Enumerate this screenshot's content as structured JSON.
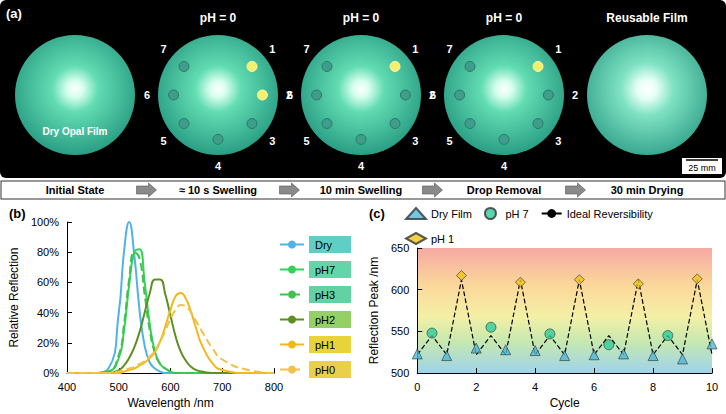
{
  "panel_a": {
    "label": "(a)",
    "photos": [
      {
        "caption": "Dry Opal Film"
      },
      {
        "title": "pH = 0",
        "drops": [
          "1",
          "2",
          "3",
          "4",
          "5",
          "6",
          "7"
        ]
      },
      {
        "title": "pH = 0",
        "drops": [
          "1",
          "2",
          "3",
          "4",
          "5",
          "6",
          "7"
        ]
      },
      {
        "title": "pH = 0",
        "drops": [
          "1",
          "2",
          "3",
          "4",
          "5",
          "6",
          "7"
        ]
      },
      {
        "title": "Reusable Film"
      }
    ],
    "scale_bar": "25 mm",
    "steps": [
      "Initial State",
      "≈ 10 s Swelling",
      "10 min Swelling",
      "Drop Removal",
      "30 min Drying"
    ]
  },
  "chart_data": [
    {
      "type": "line",
      "title": "(b)",
      "x_label": "Wavelength /nm",
      "y_label": "Relative Reflection",
      "x": [
        400,
        450,
        480,
        500,
        510,
        520,
        530,
        540,
        550,
        560,
        570,
        580,
        590,
        600,
        610,
        620,
        630,
        640,
        650,
        660,
        680,
        700,
        750,
        800
      ],
      "series": [
        {
          "name": "Dry",
          "color": "#4fb3e8",
          "line_style": "solid",
          "values": [
            0,
            0,
            3,
            40,
            80,
            100,
            78,
            42,
            18,
            7,
            3,
            1,
            0,
            0,
            0,
            0,
            0,
            0,
            0,
            0,
            0,
            0,
            0,
            0
          ]
        },
        {
          "name": "pH7",
          "color": "#33d35a",
          "line_style": "solid",
          "values": [
            0,
            0,
            1,
            10,
            28,
            58,
            80,
            82,
            60,
            32,
            14,
            6,
            3,
            1,
            0,
            0,
            0,
            0,
            0,
            0,
            0,
            0,
            0,
            0
          ]
        },
        {
          "name": "pH3",
          "color": "#3ec24e",
          "line_style": "dashed",
          "values": [
            0,
            0,
            1,
            12,
            32,
            62,
            80,
            76,
            52,
            28,
            13,
            6,
            3,
            1,
            0,
            0,
            0,
            0,
            0,
            0,
            0,
            0,
            0,
            0
          ]
        },
        {
          "name": "pH2",
          "color": "#5e8f23",
          "line_style": "solid",
          "values": [
            0,
            0,
            0,
            2,
            5,
            10,
            17,
            27,
            40,
            53,
            62,
            62,
            52,
            38,
            24,
            14,
            8,
            4,
            2,
            1,
            0,
            0,
            0,
            0
          ]
        },
        {
          "name": "pH1",
          "color": "#f3b81a",
          "line_style": "solid",
          "values": [
            0,
            0,
            0,
            0,
            1,
            2,
            3,
            5,
            7,
            10,
            14,
            21,
            31,
            42,
            51,
            53,
            49,
            40,
            29,
            19,
            7,
            2,
            0,
            0
          ]
        },
        {
          "name": "pH0",
          "color": "#f0c24a",
          "line_style": "dashed",
          "values": [
            0,
            0,
            0,
            1,
            2,
            3,
            4,
            6,
            8,
            11,
            15,
            21,
            28,
            36,
            42,
            45,
            44,
            40,
            34,
            28,
            17,
            9,
            2,
            0
          ]
        }
      ],
      "xlim": [
        400,
        800
      ],
      "xticks": [
        400,
        500,
        600,
        700,
        800
      ],
      "ylim": [
        0,
        100
      ],
      "yticks": [
        {
          "value": 0,
          "label": "0%"
        },
        {
          "value": 20,
          "label": "20%"
        },
        {
          "value": 40,
          "label": "40%"
        },
        {
          "value": 60,
          "label": "60%"
        },
        {
          "value": 80,
          "label": "80%"
        },
        {
          "value": 100,
          "label": "100%"
        }
      ],
      "grid": false,
      "legend": "right"
    },
    {
      "type": "scatter",
      "title": "(c)",
      "x_label": "Cycle",
      "y_label": "Reflection Peak /nm",
      "series": [
        {
          "name": "Dry Film",
          "color": "#4db8d8",
          "marker": "triangle",
          "x": [
            0,
            1,
            2,
            3,
            4,
            5,
            6,
            7,
            8,
            9,
            10
          ],
          "values": [
            523,
            521,
            530,
            528,
            527,
            521,
            522,
            523,
            521,
            517,
            535
          ]
        },
        {
          "name": "pH 7",
          "color": "#2ecc9a",
          "marker": "circle",
          "x": [
            0.5,
            2.5,
            4.5,
            6.5,
            8.5
          ],
          "values": [
            548,
            555,
            547,
            534,
            545
          ]
        },
        {
          "name": "Ideal Reversibility",
          "type": "line",
          "color": "#000000",
          "line_style": "dashed",
          "x": [
            0,
            0.5,
            1,
            1.5,
            2,
            2.5,
            3,
            3.5,
            4,
            4.5,
            5,
            5.5,
            6,
            6.5,
            7,
            7.5,
            8,
            8.5,
            9,
            9.5,
            10
          ],
          "values": [
            522,
            545,
            522,
            612,
            522,
            545,
            522,
            612,
            522,
            545,
            522,
            612,
            522,
            545,
            522,
            612,
            522,
            545,
            522,
            612,
            522
          ]
        },
        {
          "name": "pH 1",
          "color": "#f0c419",
          "marker": "diamond",
          "x": [
            1.5,
            3.5,
            5.5,
            7.5,
            9.5
          ],
          "values": [
            617,
            609,
            612,
            607,
            613
          ]
        }
      ],
      "xlim": [
        0,
        10
      ],
      "xticks": [
        0,
        2,
        4,
        6,
        8,
        10
      ],
      "ylim": [
        500,
        650
      ],
      "yticks": [
        500,
        550,
        600,
        650
      ],
      "grid": false,
      "legend": "top"
    }
  ]
}
